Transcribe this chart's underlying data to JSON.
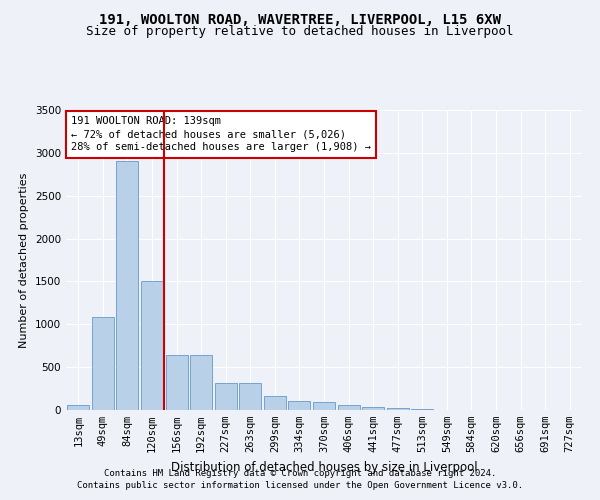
{
  "title_line1": "191, WOOLTON ROAD, WAVERTREE, LIVERPOOL, L15 6XW",
  "title_line2": "Size of property relative to detached houses in Liverpool",
  "xlabel": "Distribution of detached houses by size in Liverpool",
  "ylabel": "Number of detached properties",
  "footnote_line1": "Contains HM Land Registry data © Crown copyright and database right 2024.",
  "footnote_line2": "Contains public sector information licensed under the Open Government Licence v3.0.",
  "categories": [
    "13sqm",
    "49sqm",
    "84sqm",
    "120sqm",
    "156sqm",
    "192sqm",
    "227sqm",
    "263sqm",
    "299sqm",
    "334sqm",
    "370sqm",
    "406sqm",
    "441sqm",
    "477sqm",
    "513sqm",
    "549sqm",
    "584sqm",
    "620sqm",
    "656sqm",
    "691sqm",
    "727sqm"
  ],
  "values": [
    55,
    1090,
    2900,
    1500,
    640,
    640,
    320,
    320,
    165,
    110,
    90,
    55,
    35,
    20,
    8,
    5,
    3,
    2,
    1,
    1,
    1
  ],
  "bar_color": "#b8d0e8",
  "bar_edge_color": "#6699cc",
  "red_line_x": 3.5,
  "annotation_text": "191 WOOLTON ROAD: 139sqm\n← 72% of detached houses are smaller (5,026)\n28% of semi-detached houses are larger (1,908) →",
  "ylim": [
    0,
    3500
  ],
  "yticks": [
    0,
    500,
    1000,
    1500,
    2000,
    2500,
    3000,
    3500
  ],
  "background_color": "#eef2f8",
  "grid_color": "#ffffff",
  "box_color_face": "#ffffff",
  "box_color_edge": "#cc0000",
  "red_line_color": "#cc0000",
  "title_fontsize": 10,
  "subtitle_fontsize": 9,
  "axis_label_fontsize": 8.5,
  "tick_fontsize": 7.5,
  "annotation_fontsize": 7.5,
  "footnote_fontsize": 6.5,
  "ylabel_fontsize": 8
}
